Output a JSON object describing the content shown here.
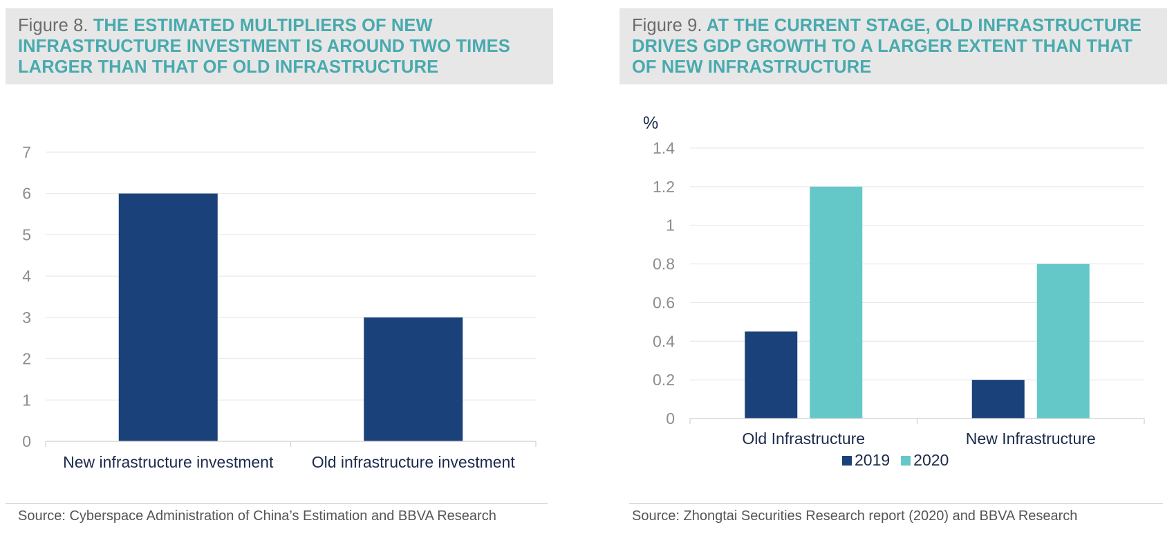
{
  "figure8": {
    "prefix": "Figure 8.",
    "title": "THE ESTIMATED MULTIPLIERS OF NEW INFRASTRUCTURE INVESTMENT IS AROUND TWO TIMES LARGER THAN THAT OF OLD INFRASTRUCTURE",
    "source": "Source: Cyberspace Administration of China’s Estimation and BBVA Research"
  },
  "figure9": {
    "prefix": "Figure 9.",
    "title": "AT THE CURRENT STAGE, OLD INFRASTRUCTURE DRIVES GDP GROWTH TO A LARGER EXTENT THAN THAT OF NEW INFRASTRUCTURE",
    "source": "Source: Zhongtai Securities Research report (2020) and BBVA Research"
  },
  "chart_data": [
    {
      "type": "bar",
      "categories": [
        "New infrastructure investment",
        "Old infrastructure investment"
      ],
      "values": [
        6,
        3
      ],
      "yticks": [
        "0",
        "1",
        "2",
        "3",
        "4",
        "5",
        "6",
        "7"
      ],
      "ylim": [
        0,
        7
      ],
      "grid": true,
      "color": "#1b417b"
    },
    {
      "type": "bar",
      "ylabel": "%",
      "categories": [
        "Old Infrastructure",
        "New Infrastructure"
      ],
      "series": [
        {
          "name": "2019",
          "values": [
            0.45,
            0.2
          ],
          "color": "#1b417b"
        },
        {
          "name": "2020",
          "values": [
            1.2,
            0.8
          ],
          "color": "#64c8c8"
        }
      ],
      "yticks": [
        "0",
        "0.2",
        "0.4",
        "0.6",
        "0.8",
        "1",
        "1.2",
        "1.4"
      ],
      "ylim": [
        0,
        1.4
      ],
      "grid": true,
      "legend": "bottom"
    }
  ]
}
